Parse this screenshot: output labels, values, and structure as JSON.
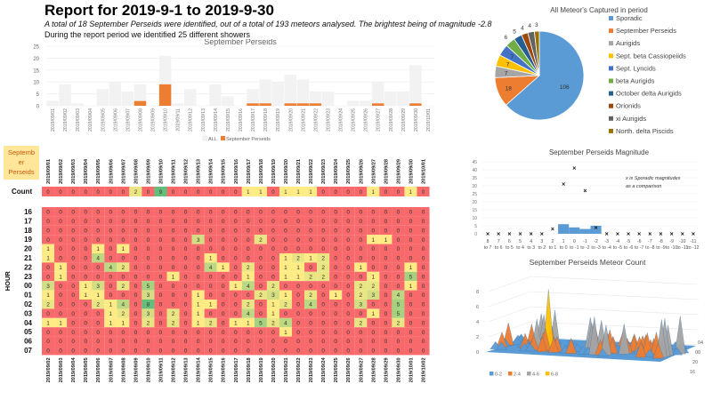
{
  "header": {
    "title": "Report for 2019-9-1 to 2019-9-30",
    "summary": "A total of 18 September Perseids were identified, out of a total of 193 meteors analysed. The brightest being of magnitude -2.8",
    "showers_note": "During the report period we identified 25 different showers"
  },
  "chart_data": [
    {
      "id": "daily-bar",
      "type": "bar",
      "title": "September Perseids",
      "categories": [
        "2019/09/01",
        "2019/09/02",
        "2019/09/03",
        "2019/09/04",
        "2019/09/05",
        "2019/09/06",
        "2019/09/07",
        "2019/09/08",
        "2019/09/09",
        "2019/09/10",
        "2019/09/11",
        "2019/09/12",
        "2019/09/13",
        "2019/09/14",
        "2019/09/15",
        "2019/09/16",
        "2019/09/17",
        "2019/09/18",
        "2019/09/19",
        "2019/09/20",
        "2019/09/21",
        "2019/09/22",
        "2019/09/23",
        "2019/09/24",
        "2019/09/25",
        "2019/09/26",
        "2019/09/27",
        "2019/09/28",
        "2019/09/29",
        "2019/09/30",
        "2019/10/01"
      ],
      "series": [
        {
          "name": "ALL",
          "color": "#f2f2f2",
          "values": [
            2,
            9,
            1,
            0,
            7,
            10,
            6,
            9,
            0,
            21,
            1,
            7,
            0,
            9,
            4,
            0,
            7,
            11,
            10,
            13,
            11,
            6,
            6,
            0,
            2,
            2,
            10,
            6,
            6,
            17,
            0
          ]
        },
        {
          "name": "September Perseids",
          "color": "#ed7d31",
          "values": [
            0,
            0,
            0,
            0,
            0,
            0,
            0,
            2,
            0,
            9,
            0,
            0,
            0,
            0,
            0,
            0,
            1,
            1,
            0,
            1,
            1,
            1,
            0,
            0,
            0,
            0,
            1,
            0,
            0,
            1,
            0
          ]
        }
      ],
      "ylim": [
        0,
        25
      ],
      "yticks": [
        0,
        5,
        10,
        15,
        20,
        25
      ],
      "legend": "bottom"
    },
    {
      "id": "hour-heatmap",
      "type": "heatmap",
      "corner_label": "September Perseids",
      "count_label": "Count",
      "axis_label": "HOUR",
      "columns": [
        "2019/09/01",
        "2019/09/02",
        "2019/09/03",
        "2019/09/04",
        "2019/09/05",
        "2019/09/06",
        "2019/09/07",
        "2019/09/08",
        "2019/09/09",
        "2019/09/10",
        "2019/09/11",
        "2019/09/12",
        "2019/09/13",
        "2019/09/14",
        "2019/09/15",
        "2019/09/16",
        "2019/09/17",
        "2019/09/18",
        "2019/09/19",
        "2019/09/20",
        "2019/09/21",
        "2019/09/22",
        "2019/09/23",
        "2019/09/24",
        "2019/09/25",
        "2019/09/26",
        "2019/09/27",
        "2019/09/28",
        "2019/09/29",
        "2019/09/30",
        "2019/10/01"
      ],
      "bottom_columns": [
        "2019/09/02",
        "2019/09/03",
        "2019/09/04",
        "2019/09/05",
        "2019/09/06",
        "2019/09/07",
        "2019/09/08",
        "2019/09/09",
        "2019/09/10",
        "2019/09/11",
        "2019/09/12",
        "2019/09/13",
        "2019/09/14",
        "2019/09/15",
        "2019/09/16",
        "2019/09/17",
        "2019/09/18",
        "2019/09/19",
        "2019/09/20",
        "2019/09/21",
        "2019/09/22",
        "2019/09/23",
        "2019/09/24",
        "2019/09/25",
        "2019/09/26",
        "2019/09/27",
        "2019/09/28",
        "2019/09/29",
        "2019/09/30",
        "2019/10/01",
        "2019/10/02"
      ],
      "count": [
        0,
        0,
        0,
        0,
        0,
        0,
        0,
        2,
        0,
        9,
        0,
        0,
        0,
        0,
        0,
        0,
        1,
        1,
        0,
        1,
        1,
        1,
        0,
        0,
        0,
        0,
        1,
        0,
        0,
        1,
        0
      ],
      "rows": [
        {
          "hour": "16",
          "values": [
            0,
            0,
            0,
            0,
            0,
            0,
            0,
            0,
            0,
            0,
            0,
            0,
            0,
            0,
            0,
            0,
            0,
            0,
            0,
            0,
            0,
            0,
            0,
            0,
            0,
            0,
            0,
            0,
            0,
            0,
            0
          ]
        },
        {
          "hour": "17",
          "values": [
            0,
            0,
            0,
            0,
            0,
            0,
            0,
            0,
            0,
            0,
            0,
            0,
            0,
            0,
            0,
            0,
            0,
            0,
            0,
            0,
            0,
            0,
            0,
            0,
            0,
            0,
            0,
            0,
            0,
            0,
            0
          ]
        },
        {
          "hour": "18",
          "values": [
            0,
            0,
            0,
            0,
            0,
            0,
            0,
            0,
            0,
            0,
            0,
            0,
            0,
            0,
            0,
            0,
            0,
            0,
            0,
            0,
            0,
            0,
            0,
            0,
            0,
            0,
            0,
            0,
            0,
            0,
            0
          ]
        },
        {
          "hour": "19",
          "values": [
            0,
            0,
            0,
            0,
            0,
            0,
            0,
            0,
            0,
            0,
            0,
            0,
            3,
            0,
            0,
            0,
            0,
            2,
            0,
            0,
            0,
            0,
            0,
            0,
            0,
            0,
            1,
            1,
            0,
            0,
            0
          ]
        },
        {
          "hour": "20",
          "values": [
            1,
            0,
            0,
            0,
            1,
            0,
            1,
            0,
            0,
            0,
            0,
            0,
            0,
            0,
            0,
            0,
            0,
            0,
            0,
            0,
            0,
            0,
            0,
            0,
            0,
            0,
            0,
            0,
            0,
            0,
            0
          ]
        },
        {
          "hour": "21",
          "values": [
            1,
            0,
            0,
            0,
            4,
            0,
            0,
            0,
            0,
            0,
            0,
            0,
            0,
            1,
            0,
            0,
            0,
            0,
            0,
            1,
            2,
            1,
            2,
            0,
            0,
            0,
            0,
            0,
            0,
            0,
            0
          ]
        },
        {
          "hour": "22",
          "values": [
            0,
            1,
            0,
            0,
            0,
            4,
            2,
            0,
            0,
            0,
            0,
            0,
            0,
            4,
            1,
            0,
            2,
            0,
            0,
            1,
            1,
            0,
            2,
            0,
            0,
            1,
            0,
            0,
            0,
            1,
            0
          ]
        },
        {
          "hour": "23",
          "values": [
            0,
            1,
            0,
            0,
            0,
            0,
            0,
            0,
            0,
            0,
            1,
            0,
            0,
            0,
            0,
            0,
            1,
            0,
            0,
            1,
            1,
            2,
            2,
            0,
            0,
            0,
            1,
            0,
            0,
            5,
            0
          ]
        },
        {
          "hour": "00",
          "values": [
            3,
            0,
            0,
            1,
            3,
            0,
            2,
            0,
            5,
            0,
            0,
            0,
            0,
            0,
            0,
            1,
            4,
            0,
            2,
            0,
            0,
            0,
            0,
            0,
            0,
            2,
            2,
            0,
            0,
            1,
            0
          ]
        },
        {
          "hour": "01",
          "values": [
            1,
            0,
            0,
            1,
            1,
            0,
            0,
            0,
            3,
            0,
            0,
            0,
            1,
            0,
            0,
            0,
            0,
            2,
            3,
            1,
            0,
            2,
            0,
            1,
            0,
            2,
            3,
            0,
            4,
            0,
            0
          ]
        },
        {
          "hour": "02",
          "values": [
            2,
            0,
            0,
            0,
            2,
            1,
            4,
            0,
            8,
            0,
            0,
            0,
            1,
            1,
            0,
            0,
            2,
            0,
            1,
            2,
            0,
            4,
            0,
            0,
            0,
            3,
            0,
            0,
            5,
            0,
            0
          ]
        },
        {
          "hour": "03",
          "values": [
            0,
            0,
            0,
            0,
            0,
            1,
            2,
            0,
            3,
            0,
            2,
            0,
            1,
            0,
            0,
            0,
            4,
            0,
            1,
            0,
            0,
            0,
            0,
            0,
            0,
            0,
            1,
            0,
            5,
            0,
            0
          ]
        },
        {
          "hour": "04",
          "values": [
            1,
            1,
            0,
            0,
            0,
            1,
            1,
            0,
            2,
            0,
            2,
            0,
            1,
            2,
            0,
            1,
            1,
            5,
            2,
            4,
            0,
            0,
            0,
            0,
            0,
            2,
            0,
            0,
            2,
            0,
            0
          ]
        },
        {
          "hour": "05",
          "values": [
            0,
            0,
            0,
            0,
            0,
            0,
            0,
            0,
            0,
            0,
            0,
            0,
            0,
            0,
            0,
            0,
            0,
            0,
            0,
            1,
            0,
            0,
            0,
            0,
            0,
            0,
            0,
            0,
            0,
            0,
            0
          ]
        },
        {
          "hour": "06",
          "values": [
            0,
            0,
            0,
            0,
            0,
            0,
            0,
            0,
            0,
            0,
            0,
            0,
            0,
            0,
            0,
            0,
            0,
            0,
            0,
            0,
            0,
            0,
            0,
            0,
            0,
            0,
            0,
            0,
            0,
            0,
            0
          ]
        },
        {
          "hour": "07",
          "values": [
            0,
            0,
            0,
            0,
            0,
            0,
            0,
            0,
            0,
            0,
            0,
            0,
            0,
            0,
            0,
            0,
            0,
            0,
            0,
            0,
            0,
            0,
            0,
            0,
            0,
            0,
            0,
            0,
            0,
            0,
            0
          ]
        }
      ],
      "colors": {
        "zero": "#f8696b",
        "low": "#ffeb84",
        "high": "#63be7b",
        "corner": "#ffe699"
      }
    },
    {
      "id": "shower-pie",
      "type": "pie",
      "title": "All Meteor's Captured in period",
      "slices": [
        {
          "label": "Sporadic",
          "value": 106,
          "color": "#5b9bd5"
        },
        {
          "label": "September Perseids",
          "value": 18,
          "color": "#ed7d31"
        },
        {
          "label": "Aurigids",
          "value": 7,
          "color": "#a5a5a5"
        },
        {
          "label": "Sept. beta Cassiopeiids",
          "value": 7,
          "color": "#ffc000"
        },
        {
          "label": "Sept. Lyncids",
          "value": 7,
          "color": "#4472c4"
        },
        {
          "label": "beta Aurigids",
          "value": 6,
          "color": "#70ad47"
        },
        {
          "label": "October delta Aurigids",
          "value": 5,
          "color": "#255e91"
        },
        {
          "label": "Orionids",
          "value": 4,
          "color": "#9e480e"
        },
        {
          "label": "xi Aurigids",
          "value": 4,
          "color": "#636363"
        },
        {
          "label": "North. delta Piscids",
          "value": 3,
          "color": "#997300"
        }
      ],
      "legend": "right"
    },
    {
      "id": "magnitude",
      "type": "bar",
      "title": "September Perseids Magnitude",
      "annotation": "x is Sporadic magnitudes as a comparison",
      "categories": [
        "8 to 7",
        "7 to 6",
        "6 to 5",
        "5 to 4",
        "4 to 3",
        "3 to 2",
        "2 to 1",
        "1 to 0",
        "0 to -1",
        "-1 to -2",
        "-2 to -3",
        "-3 to -4",
        "-4 to -5",
        "-5 to -6",
        "-6 to -7",
        "-7 to -8",
        "-8 to -9",
        "-9 to -10",
        "-10 to -11",
        "-11 to -12"
      ],
      "series": [
        {
          "name": "September Perseids",
          "type": "area",
          "color": "#5b9bd5",
          "values": [
            0,
            0,
            0,
            0,
            0,
            0,
            0,
            6,
            4,
            3,
            5,
            0,
            0,
            0,
            0,
            0,
            0,
            0,
            0,
            0
          ]
        },
        {
          "name": "Sporadic",
          "type": "scatter",
          "marker": "x",
          "values": [
            0,
            0,
            0,
            0,
            0,
            0,
            3,
            31,
            41,
            27,
            4,
            0,
            0,
            0,
            0,
            0,
            0,
            0,
            0,
            0
          ]
        }
      ],
      "ylim": [
        0,
        45
      ],
      "yticks": [
        0,
        5,
        10,
        15,
        20,
        25,
        30,
        35,
        40,
        45
      ]
    },
    {
      "id": "meteor-count-surface",
      "type": "area",
      "title": "September Perseids Meteor Count",
      "zticks": [
        0,
        2,
        4,
        6,
        8
      ],
      "depth_ticks": [
        "16",
        "20",
        "00",
        "04"
      ],
      "legend": [
        {
          "label": "0-2",
          "color": "#5b9bd5"
        },
        {
          "label": "2-4",
          "color": "#ed7d31"
        },
        {
          "label": "4-6",
          "color": "#a5a5a5"
        },
        {
          "label": "6-8",
          "color": "#ffc000"
        }
      ]
    }
  ]
}
